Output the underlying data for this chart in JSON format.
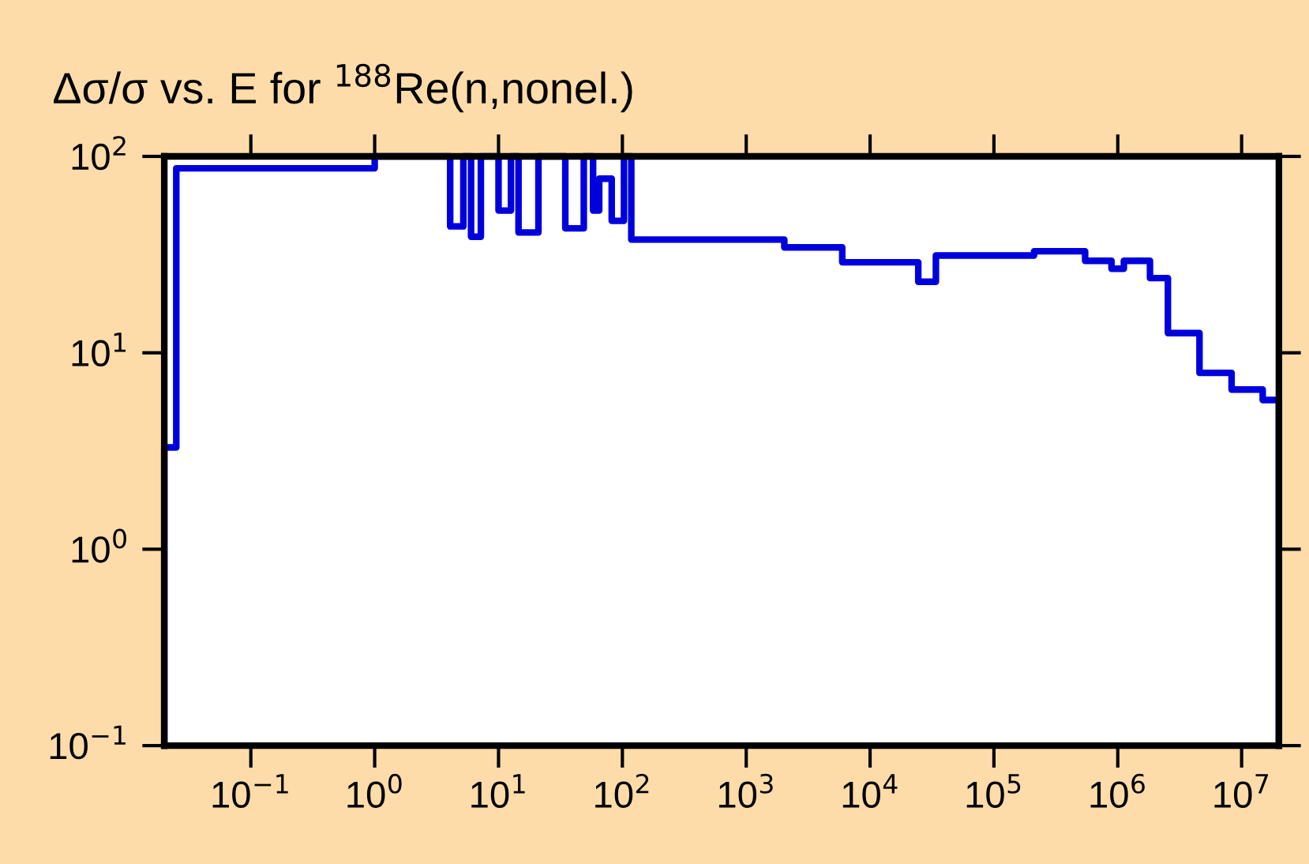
{
  "chart_data": {
    "type": "step",
    "title": "Δσ/σ vs. E for $^{188}$Re(n,nonel.)",
    "log": "xy",
    "grid": false,
    "line_style": "solid",
    "marker": "none",
    "xlim": [
      0.02,
      20000000
    ],
    "ylim": [
      0.1,
      100
    ],
    "xticks": [
      {
        "value": 0.1,
        "label": "10$^{−1}$"
      },
      {
        "value": 1,
        "label": "10$^{0}$"
      },
      {
        "value": 10,
        "label": "10$^{1}$"
      },
      {
        "value": 100,
        "label": "10$^{2}$"
      },
      {
        "value": 1000,
        "label": "10$^{3}$"
      },
      {
        "value": 10000,
        "label": "10$^{4}$"
      },
      {
        "value": 100000,
        "label": "10$^{5}$"
      },
      {
        "value": 1000000,
        "label": "10$^{6}$"
      },
      {
        "value": 10000000,
        "label": "10$^{7}$"
      }
    ],
    "yticks": [
      {
        "value": 0.1,
        "label": "10$^{−1}$"
      },
      {
        "value": 1,
        "label": "10$^{0}$"
      },
      {
        "value": 10,
        "label": "10$^{1}$"
      },
      {
        "value": 100,
        "label": "10$^{2}$"
      }
    ],
    "series": [
      {
        "color": "#0000dd",
        "x": [
          0.02,
          0.02,
          0.025,
          1.0,
          4.07,
          5.2,
          6.0,
          7.2,
          10,
          12.6,
          14.5,
          21,
          34.6,
          48.8,
          58,
          65,
          82,
          103,
          118,
          2030,
          5960,
          24500,
          34000,
          211000,
          545000,
          890000,
          1120000,
          1820000,
          2540000,
          4570000,
          8300000,
          14800000,
          20000000
        ],
        "values": [
          0.1,
          3.3,
          87,
          100,
          44,
          100,
          39,
          100,
          53,
          100,
          41,
          100,
          43,
          100,
          53,
          77,
          47,
          100,
          37.7,
          34.4,
          28.9,
          23,
          31.3,
          32.9,
          29.4,
          26.8,
          29.4,
          24,
          12.6,
          7.9,
          6.5,
          5.75,
          0.1
        ]
      }
    ]
  }
}
